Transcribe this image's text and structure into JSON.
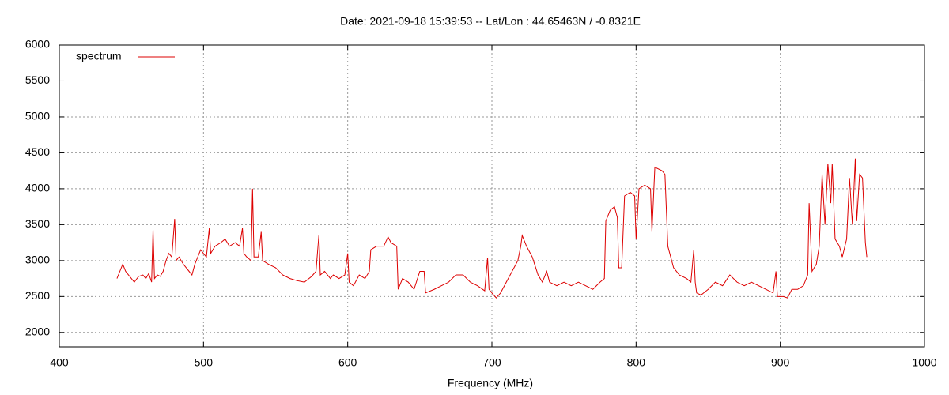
{
  "chart_data": {
    "type": "line",
    "title": "Date: 2021-09-18 15:39:53  --  Lat/Lon : 44.65463N / -0.8321E",
    "x_label": "Frequency (MHz)",
    "xlim": [
      400,
      1000
    ],
    "xticks": [
      400,
      500,
      600,
      700,
      800,
      900,
      1000
    ],
    "ylim": [
      1800,
      6000
    ],
    "yticks": [
      2000,
      2500,
      3000,
      3500,
      4000,
      4500,
      5000,
      5500,
      6000
    ],
    "grid": true,
    "legend": "top-left",
    "x": [
      440,
      442,
      444,
      446,
      448,
      450,
      452,
      455,
      458,
      460,
      462,
      464,
      465,
      466,
      468,
      470,
      472,
      474,
      476,
      478,
      480,
      481,
      483,
      486,
      488,
      490,
      492,
      494,
      496,
      498,
      500,
      502,
      504,
      505,
      508,
      512,
      515,
      518,
      522,
      525,
      527,
      528,
      530,
      533,
      534,
      535,
      538,
      540,
      541,
      545,
      550,
      555,
      560,
      565,
      570,
      575,
      578,
      580,
      581,
      584,
      588,
      590,
      594,
      598,
      600,
      601,
      604,
      608,
      612,
      615,
      616,
      620,
      625,
      628,
      630,
      634,
      635,
      638,
      642,
      646,
      650,
      653,
      654,
      660,
      665,
      670,
      675,
      680,
      685,
      690,
      695,
      697,
      698,
      700,
      703,
      706,
      710,
      714,
      718,
      720,
      721,
      724,
      728,
      732,
      735,
      738,
      740,
      745,
      750,
      755,
      760,
      765,
      770,
      775,
      778,
      779,
      782,
      785,
      787,
      788,
      790,
      792,
      796,
      799,
      800,
      802,
      806,
      810,
      811,
      813,
      818,
      820,
      822,
      826,
      830,
      835,
      838,
      840,
      841,
      842,
      845,
      850,
      855,
      860,
      865,
      870,
      875,
      880,
      885,
      890,
      895,
      897,
      898,
      902,
      905,
      908,
      912,
      916,
      919,
      920,
      922,
      925,
      927,
      929,
      931,
      933,
      935,
      936,
      938,
      941,
      943,
      946,
      948,
      950,
      952,
      953,
      955,
      957,
      959,
      960
    ],
    "series": [
      {
        "name": "spectrum",
        "color": "#dd0000",
        "values": [
          2750,
          2850,
          2950,
          2850,
          2800,
          2750,
          2700,
          2780,
          2800,
          2750,
          2820,
          2700,
          3430,
          2750,
          2800,
          2780,
          2850,
          3000,
          3100,
          3050,
          3580,
          3000,
          3050,
          2950,
          2900,
          2850,
          2800,
          2950,
          3050,
          3150,
          3100,
          3050,
          3450,
          3100,
          3200,
          3250,
          3300,
          3200,
          3250,
          3200,
          3450,
          3100,
          3050,
          3000,
          4000,
          3050,
          3050,
          3400,
          3000,
          2950,
          2900,
          2800,
          2750,
          2720,
          2700,
          2780,
          2850,
          3350,
          2800,
          2850,
          2750,
          2800,
          2750,
          2800,
          3100,
          2700,
          2650,
          2800,
          2750,
          2850,
          3150,
          3200,
          3200,
          3330,
          3250,
          3200,
          2600,
          2750,
          2700,
          2600,
          2850,
          2850,
          2550,
          2600,
          2650,
          2700,
          2800,
          2800,
          2700,
          2650,
          2580,
          3040,
          2600,
          2550,
          2480,
          2550,
          2700,
          2850,
          3000,
          3200,
          3350,
          3200,
          3050,
          2800,
          2700,
          2850,
          2700,
          2650,
          2700,
          2650,
          2700,
          2650,
          2600,
          2700,
          2750,
          3550,
          3700,
          3750,
          3600,
          2900,
          2900,
          3900,
          3950,
          3900,
          3300,
          4000,
          4050,
          4000,
          3400,
          4300,
          4250,
          4200,
          3200,
          2900,
          2800,
          2750,
          2700,
          3150,
          2700,
          2550,
          2520,
          2600,
          2700,
          2650,
          2800,
          2700,
          2650,
          2700,
          2650,
          2600,
          2550,
          2850,
          2500,
          2500,
          2480,
          2600,
          2600,
          2650,
          2800,
          3800,
          2850,
          2950,
          3200,
          4200,
          3500,
          4350,
          3800,
          4350,
          3300,
          3200,
          3050,
          3300,
          4150,
          3500,
          4420,
          3550,
          4200,
          4150,
          3250,
          3050
        ]
      }
    ]
  }
}
